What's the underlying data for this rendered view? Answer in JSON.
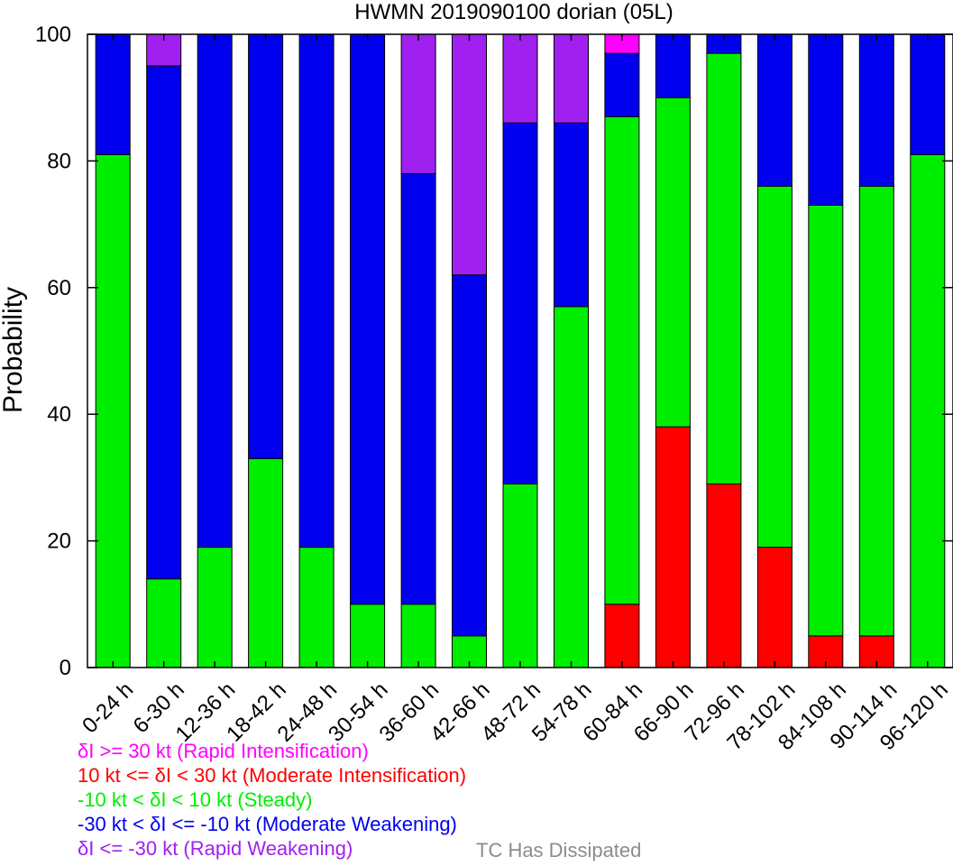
{
  "chart_data": {
    "type": "bar",
    "stacked": true,
    "title": "HWMN 2019090100 dorian (05L)",
    "xlabel": "",
    "ylabel": "Probability",
    "ylim": [
      0,
      100
    ],
    "yticks": [
      0,
      20,
      40,
      60,
      80,
      100
    ],
    "grid": false,
    "categories": [
      "0-24 h",
      "6-30 h",
      "12-36 h",
      "18-42 h",
      "24-48 h",
      "30-54 h",
      "36-60 h",
      "42-66 h",
      "48-72 h",
      "54-78 h",
      "60-84 h",
      "66-90 h",
      "72-96 h",
      "78-102 h",
      "84-108 h",
      "90-114 h",
      "96-120 h"
    ],
    "series": [
      {
        "key": "moderate_intensification",
        "color": "#ff0000",
        "values": [
          0,
          0,
          0,
          0,
          0,
          0,
          0,
          0,
          0,
          0,
          10,
          38,
          29,
          19,
          5,
          5,
          0
        ]
      },
      {
        "key": "steady",
        "color": "#00ee00",
        "values": [
          81,
          14,
          19,
          33,
          19,
          10,
          10,
          5,
          29,
          57,
          77,
          52,
          68,
          57,
          68,
          71,
          81
        ]
      },
      {
        "key": "moderate_weakening",
        "color": "#0000ee",
        "values": [
          19,
          81,
          81,
          67,
          81,
          90,
          68,
          57,
          57,
          29,
          10,
          10,
          3,
          24,
          27,
          24,
          19
        ]
      },
      {
        "key": "rapid_weakening",
        "color": "#a020f0",
        "values": [
          0,
          5,
          0,
          0,
          0,
          0,
          22,
          38,
          14,
          14,
          0,
          0,
          0,
          0,
          0,
          0,
          0
        ]
      },
      {
        "key": "rapid_intensification",
        "color": "#ff00ff",
        "values": [
          0,
          0,
          0,
          0,
          0,
          0,
          0,
          0,
          0,
          0,
          3,
          0,
          0,
          0,
          0,
          0,
          0
        ]
      }
    ],
    "legend": {
      "placement": "bottom-left",
      "entries": [
        {
          "text": "δI >= 30 kt (Rapid Intensification)",
          "color": "#ff00ff"
        },
        {
          "text": "10 kt <= δI < 30 kt (Moderate Intensification)",
          "color": "#ff0000"
        },
        {
          "text": "-10 kt < δI < 10 kt (Steady)",
          "color": "#00ee00"
        },
        {
          "text": "-30 kt < δI <= -10 kt (Moderate Weakening)",
          "color": "#0000ee"
        },
        {
          "text": "δI <= -30 kt (Rapid Weakening)",
          "color": "#a020f0"
        }
      ],
      "dissipated_text": "TC Has Dissipated",
      "dissipated_color": "#8c8c8c"
    }
  }
}
